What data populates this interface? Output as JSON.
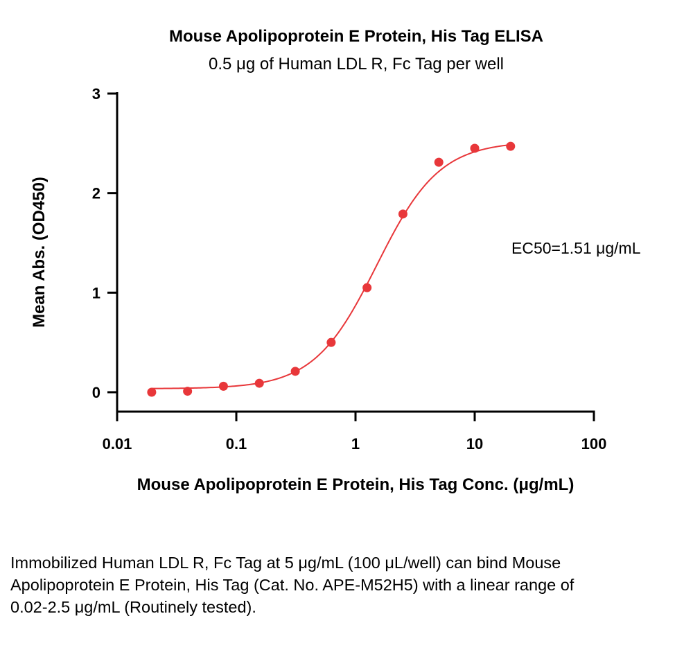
{
  "chart_data": {
    "type": "scatter",
    "title": "Mouse Apolipoprotein E Protein, His Tag ELISA",
    "subtitle": "0.5 μg of Human LDL R, Fc Tag per well",
    "xlabel": "Mouse Apolipoprotein E Protein, His Tag Conc. (μg/mL)",
    "ylabel": "Mean Abs. (OD450)",
    "xscale": "log",
    "xlim": [
      0.01,
      100
    ],
    "ylim": [
      -0.2,
      3
    ],
    "xticks": [
      0.01,
      0.1,
      1,
      10,
      100
    ],
    "xtick_labels": [
      "0.01",
      "0.1",
      "1",
      "10",
      "100"
    ],
    "yticks": [
      0,
      1,
      2,
      3
    ],
    "ytick_labels": [
      "0",
      "1",
      "2",
      "3"
    ],
    "grid": false,
    "color": "#e8373a",
    "series": [
      {
        "x": [
          0.0195,
          0.039,
          0.078,
          0.156,
          0.3125,
          0.625,
          1.25,
          2.5,
          5,
          10,
          20
        ],
        "y": [
          0.0,
          0.01,
          0.06,
          0.09,
          0.21,
          0.5,
          1.05,
          1.79,
          2.31,
          2.45,
          2.47
        ]
      }
    ],
    "fit": {
      "model": "4PL",
      "bottom": 0.035,
      "top": 2.52,
      "ec50": 1.51,
      "hill": 1.65
    },
    "annotation": "EC50=1.51 μg/mL"
  },
  "caption": "Immobilized Human LDL R, Fc Tag at 5 μg/mL (100 μL/well) can bind Mouse Apolipoprotein E Protein, His Tag (Cat. No. APE-M52H5) with a linear range of 0.02-2.5 μg/mL (Routinely tested)."
}
